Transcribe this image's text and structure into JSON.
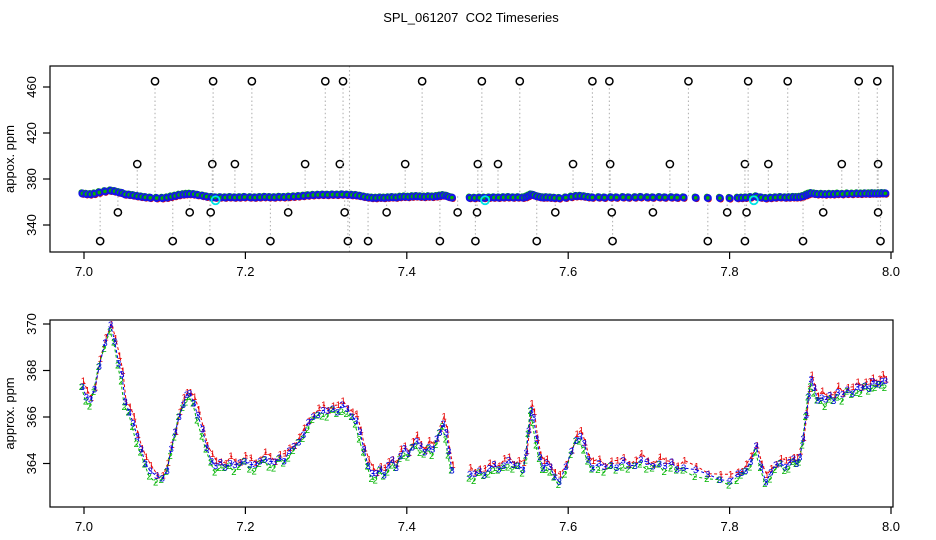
{
  "title": "SPL_061207  CO2 Timeseries",
  "colors": {
    "series1_red": "#e60000",
    "series2_green": "#00b400",
    "series3_blue": "#0000e6",
    "band_blue": "#1414e6",
    "calibration_marker": "#000000",
    "cyan_marker": "#00e5e5",
    "dotted_riser_grey": "#b4b4b4",
    "axis": "#000000",
    "background": "#ffffff"
  },
  "chart_data": [
    {
      "type": "scatter",
      "panel": "top",
      "title": "",
      "xlabel": "",
      "ylabel": "appox. ppm",
      "xlim": [
        6.99,
        8.01
      ],
      "ylim": [
        322,
        478
      ],
      "xticks": [
        7.0,
        7.2,
        7.4,
        7.6,
        7.8,
        8.0
      ],
      "yticks": [
        340,
        380,
        420,
        460
      ],
      "grid": false,
      "legend": "none",
      "band_description": "dense ambient CO2 band ~363-368 ppm built from overlapping red/green/blue markers (same data as bottom panel)",
      "spike_marker": "open-circle",
      "spike_levels": {
        "465": [
          7.088,
          7.16,
          7.208,
          7.299,
          7.321,
          7.419,
          7.493,
          7.54,
          7.63,
          7.651,
          7.749,
          7.823,
          7.872,
          7.96,
          7.983
        ],
        "393": [
          7.066,
          7.159,
          7.187,
          7.274,
          7.317,
          7.398,
          7.488,
          7.513,
          7.606,
          7.652,
          7.726,
          7.819,
          7.848,
          7.939,
          7.984
        ],
        "351": [
          7.042,
          7.131,
          7.157,
          7.253,
          7.323,
          7.375,
          7.463,
          7.487,
          7.584,
          7.654,
          7.705,
          7.797,
          7.821,
          7.916,
          7.984
        ],
        "326": [
          7.02,
          7.11,
          7.156,
          7.231,
          7.327,
          7.352,
          7.441,
          7.485,
          7.561,
          7.655,
          7.773,
          7.819,
          7.891,
          7.987
        ]
      },
      "full_height_dotted_line_x": 7.329,
      "cyan_marker_x": [
        7.163,
        7.497,
        7.83
      ]
    },
    {
      "type": "scatter",
      "panel": "bottom",
      "title": "",
      "xlabel": "",
      "ylabel": "approx. ppm",
      "xlim": [
        6.99,
        8.01
      ],
      "ylim": [
        362.1,
        370.2
      ],
      "xticks": [
        7.0,
        7.2,
        7.4,
        7.6,
        7.8,
        8.0
      ],
      "yticks": [
        364,
        366,
        368,
        370
      ],
      "grid": false,
      "legend": "none",
      "series_symbols": [
        {
          "symbol": "1",
          "color": "#e60000"
        },
        {
          "symbol": "2",
          "color": "#00b400"
        },
        {
          "symbol": "3",
          "color": "#0000e6"
        }
      ],
      "line_style": "dashed",
      "points": [
        [
          6.998,
          367.4
        ],
        [
          7.003,
          366.9
        ],
        [
          7.008,
          366.7
        ],
        [
          7.013,
          367.2
        ],
        [
          7.019,
          368.3
        ],
        [
          7.026,
          369.2
        ],
        [
          7.033,
          369.9
        ],
        [
          7.038,
          369.3
        ],
        [
          7.043,
          368.4
        ],
        [
          7.047,
          367.8
        ],
        [
          7.051,
          366.6
        ],
        [
          7.056,
          366.3
        ],
        [
          7.061,
          365.8
        ],
        [
          7.066,
          365.1
        ],
        [
          7.071,
          364.6
        ],
        [
          7.076,
          364.1
        ],
        [
          7.082,
          363.7
        ],
        [
          7.09,
          363.4
        ],
        [
          7.097,
          363.4
        ],
        [
          7.103,
          363.8
        ],
        [
          7.108,
          364.6
        ],
        [
          7.113,
          365.3
        ],
        [
          7.118,
          366.1
        ],
        [
          7.123,
          366.6
        ],
        [
          7.127,
          366.9
        ],
        [
          7.131,
          367.0
        ],
        [
          7.136,
          366.7
        ],
        [
          7.141,
          366.1
        ],
        [
          7.147,
          365.4
        ],
        [
          7.152,
          364.7
        ],
        [
          7.158,
          364.2
        ],
        [
          7.163,
          363.9
        ],
        [
          7.169,
          364.0
        ],
        [
          7.175,
          363.9
        ],
        [
          7.181,
          364.1
        ],
        [
          7.187,
          363.9
        ],
        [
          7.193,
          364.0
        ],
        [
          7.199,
          364.2
        ],
        [
          7.206,
          364.0
        ],
        [
          7.212,
          363.9
        ],
        [
          7.218,
          364.1
        ],
        [
          7.224,
          364.3
        ],
        [
          7.23,
          364.1
        ],
        [
          7.236,
          364.0
        ],
        [
          7.242,
          364.3
        ],
        [
          7.248,
          364.2
        ],
        [
          7.254,
          364.5
        ],
        [
          7.26,
          364.7
        ],
        [
          7.266,
          365.0
        ],
        [
          7.272,
          365.3
        ],
        [
          7.278,
          365.7
        ],
        [
          7.284,
          366.0
        ],
        [
          7.29,
          366.2
        ],
        [
          7.296,
          366.3
        ],
        [
          7.302,
          366.2
        ],
        [
          7.308,
          366.4
        ],
        [
          7.314,
          366.3
        ],
        [
          7.32,
          366.5
        ],
        [
          7.326,
          366.3
        ],
        [
          7.332,
          366.1
        ],
        [
          7.337,
          365.9
        ],
        [
          7.342,
          365.3
        ],
        [
          7.347,
          364.6
        ],
        [
          7.352,
          364.0
        ],
        [
          7.357,
          363.6
        ],
        [
          7.362,
          363.5
        ],
        [
          7.367,
          363.8
        ],
        [
          7.372,
          363.6
        ],
        [
          7.377,
          363.9
        ],
        [
          7.382,
          364.1
        ],
        [
          7.387,
          363.9
        ],
        [
          7.392,
          364.4
        ],
        [
          7.397,
          364.6
        ],
        [
          7.402,
          364.4
        ],
        [
          7.407,
          364.8
        ],
        [
          7.412,
          365.0
        ],
        [
          7.417,
          364.7
        ],
        [
          7.422,
          364.5
        ],
        [
          7.427,
          364.8
        ],
        [
          7.432,
          364.6
        ],
        [
          7.437,
          365.0
        ],
        [
          7.441,
          365.4
        ],
        [
          7.445,
          365.8
        ],
        [
          7.449,
          365.3
        ],
        [
          7.452,
          364.5
        ],
        [
          7.456,
          363.8
        ],
        [
          7.478,
          363.6
        ],
        [
          7.484,
          363.5
        ],
        [
          7.49,
          363.7
        ],
        [
          7.496,
          363.6
        ],
        [
          7.502,
          363.8
        ],
        [
          7.508,
          363.9
        ],
        [
          7.514,
          363.8
        ],
        [
          7.52,
          364.0
        ],
        [
          7.526,
          364.1
        ],
        [
          7.532,
          363.9
        ],
        [
          7.538,
          364.0
        ],
        [
          7.544,
          363.8
        ],
        [
          7.548,
          364.4
        ],
        [
          7.551,
          365.4
        ],
        [
          7.554,
          366.4
        ],
        [
          7.557,
          366.0
        ],
        [
          7.561,
          365.0
        ],
        [
          7.565,
          364.3
        ],
        [
          7.569,
          363.9
        ],
        [
          7.573,
          364.0
        ],
        [
          7.578,
          363.8
        ],
        [
          7.583,
          363.5
        ],
        [
          7.589,
          363.3
        ],
        [
          7.597,
          363.8
        ],
        [
          7.604,
          364.5
        ],
        [
          7.61,
          365.1
        ],
        [
          7.615,
          365.2
        ],
        [
          7.62,
          364.8
        ],
        [
          7.625,
          364.2
        ],
        [
          7.63,
          363.9
        ],
        [
          7.638,
          364.0
        ],
        [
          7.645,
          363.8
        ],
        [
          7.653,
          364.0
        ],
        [
          7.66,
          363.9
        ],
        [
          7.668,
          364.1
        ],
        [
          7.675,
          363.9
        ],
        [
          7.683,
          364.0
        ],
        [
          7.69,
          364.2
        ],
        [
          7.698,
          364.0
        ],
        [
          7.705,
          363.9
        ],
        [
          7.713,
          364.1
        ],
        [
          7.72,
          363.9
        ],
        [
          7.728,
          364.0
        ],
        [
          7.735,
          363.8
        ],
        [
          7.743,
          363.9
        ],
        [
          7.758,
          363.7
        ],
        [
          7.773,
          363.5
        ],
        [
          7.788,
          363.4
        ],
        [
          7.8,
          363.3
        ],
        [
          7.81,
          363.5
        ],
        [
          7.815,
          363.6
        ],
        [
          7.82,
          363.8
        ],
        [
          7.826,
          364.1
        ],
        [
          7.833,
          364.7
        ],
        [
          7.839,
          363.9
        ],
        [
          7.845,
          363.3
        ],
        [
          7.851,
          363.6
        ],
        [
          7.857,
          363.9
        ],
        [
          7.863,
          364.1
        ],
        [
          7.869,
          363.9
        ],
        [
          7.874,
          364.0
        ],
        [
          7.879,
          364.2
        ],
        [
          7.883,
          364.1
        ],
        [
          7.887,
          364.3
        ],
        [
          7.891,
          365.0
        ],
        [
          7.895,
          366.1
        ],
        [
          7.898,
          367.0
        ],
        [
          7.901,
          367.6
        ],
        [
          7.905,
          367.2
        ],
        [
          7.909,
          366.8
        ],
        [
          7.914,
          366.9
        ],
        [
          7.919,
          366.7
        ],
        [
          7.924,
          366.9
        ],
        [
          7.929,
          366.8
        ],
        [
          7.934,
          367.1
        ],
        [
          7.94,
          366.9
        ],
        [
          7.946,
          367.2
        ],
        [
          7.952,
          367.1
        ],
        [
          7.958,
          367.3
        ],
        [
          7.963,
          367.2
        ],
        [
          7.968,
          367.4
        ],
        [
          7.973,
          367.3
        ],
        [
          7.977,
          367.5
        ],
        [
          7.981,
          367.4
        ],
        [
          7.985,
          367.5
        ],
        [
          7.989,
          367.6
        ],
        [
          7.993,
          367.5
        ]
      ]
    }
  ]
}
